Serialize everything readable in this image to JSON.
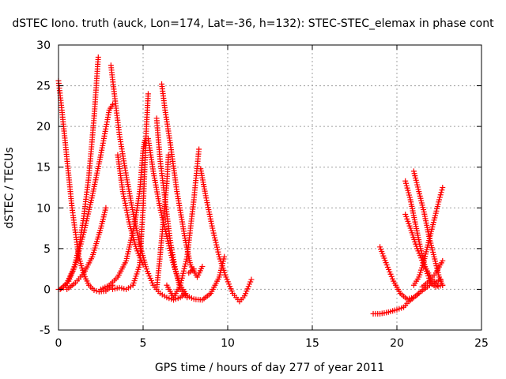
{
  "chart_data": {
    "type": "scatter",
    "title": "dSTEC Iono. truth (auck, Lon=174, Lat=-36, h=132): STEC-STEC_elemax in phase cont",
    "xlabel": "GPS time / hours of day 277 of year 2011",
    "ylabel": "dSTEC  / TECUs",
    "xlim": [
      0,
      25
    ],
    "ylim": [
      -5,
      30
    ],
    "x_ticks": [
      0,
      5,
      10,
      15,
      20,
      25
    ],
    "y_ticks": [
      -5,
      0,
      5,
      10,
      15,
      20,
      25,
      30
    ],
    "grid": true,
    "marker": "plus",
    "colors": {
      "series": "#ff0000",
      "grid": "#a0a0a0",
      "frame": "#000000"
    },
    "series": [
      {
        "points": [
          [
            0.0,
            25.6
          ],
          [
            0.2,
            22.0
          ],
          [
            0.4,
            18.0
          ],
          [
            0.6,
            14.0
          ],
          [
            0.8,
            10.0
          ],
          [
            1.0,
            7.0
          ],
          [
            1.2,
            4.0
          ],
          [
            1.5,
            1.8
          ],
          [
            1.8,
            0.5
          ],
          [
            2.1,
            -0.1
          ],
          [
            2.4,
            -0.3
          ],
          [
            2.8,
            -0.2
          ],
          [
            3.2,
            0.5
          ]
        ]
      },
      {
        "points": [
          [
            0.0,
            0.0
          ],
          [
            0.3,
            0.2
          ],
          [
            0.6,
            1.0
          ],
          [
            0.9,
            2.5
          ],
          [
            1.2,
            5.0
          ],
          [
            1.5,
            9.0
          ],
          [
            1.8,
            14.0
          ],
          [
            2.1,
            21.0
          ],
          [
            2.35,
            28.5
          ]
        ]
      },
      {
        "points": [
          [
            0.1,
            0.0
          ],
          [
            0.5,
            0.8
          ],
          [
            1.0,
            3.0
          ],
          [
            1.5,
            7.0
          ],
          [
            2.0,
            11.5
          ],
          [
            2.5,
            16.5
          ],
          [
            3.0,
            22.0
          ],
          [
            3.2,
            22.7
          ]
        ]
      },
      {
        "points": [
          [
            0.5,
            0.0
          ],
          [
            1.0,
            0.8
          ],
          [
            1.5,
            2.0
          ],
          [
            2.0,
            4.0
          ],
          [
            2.5,
            7.5
          ],
          [
            2.8,
            10.0
          ]
        ]
      },
      {
        "points": [
          [
            3.1,
            27.5
          ],
          [
            3.3,
            24.0
          ],
          [
            3.6,
            19.0
          ],
          [
            4.0,
            14.0
          ],
          [
            4.4,
            9.5
          ],
          [
            4.8,
            5.5
          ],
          [
            5.2,
            2.5
          ],
          [
            5.6,
            0.5
          ],
          [
            6.0,
            -0.5
          ],
          [
            6.4,
            -1.0
          ],
          [
            6.8,
            -1.3
          ],
          [
            7.2,
            -1.0
          ],
          [
            7.5,
            -0.5
          ]
        ]
      },
      {
        "points": [
          [
            3.5,
            16.5
          ],
          [
            3.8,
            12.0
          ],
          [
            4.2,
            8.0
          ],
          [
            4.6,
            5.0
          ],
          [
            5.0,
            3.0
          ]
        ]
      },
      {
        "points": [
          [
            2.5,
            0.0
          ],
          [
            3.0,
            0.5
          ],
          [
            3.5,
            1.5
          ],
          [
            4.0,
            3.5
          ],
          [
            4.5,
            8.0
          ],
          [
            4.8,
            12.0
          ],
          [
            5.0,
            17.0
          ],
          [
            5.1,
            18.3
          ]
        ]
      },
      {
        "points": [
          [
            3.2,
            0.0
          ],
          [
            3.6,
            0.2
          ],
          [
            4.0,
            0.0
          ],
          [
            4.4,
            0.5
          ],
          [
            4.8,
            3.0
          ],
          [
            5.0,
            10.0
          ],
          [
            5.1,
            15.0
          ],
          [
            5.2,
            20.0
          ],
          [
            5.3,
            24.0
          ]
        ]
      },
      {
        "points": [
          [
            5.3,
            18.5
          ],
          [
            5.6,
            14.5
          ],
          [
            6.0,
            10.0
          ],
          [
            6.4,
            6.5
          ],
          [
            6.8,
            3.0
          ],
          [
            7.2,
            0.5
          ],
          [
            7.6,
            -0.8
          ],
          [
            8.0,
            -1.2
          ],
          [
            8.5,
            -1.3
          ],
          [
            9.0,
            -0.5
          ],
          [
            9.5,
            1.5
          ],
          [
            9.8,
            4.0
          ]
        ]
      },
      {
        "points": [
          [
            6.1,
            25.2
          ],
          [
            6.3,
            22.0
          ],
          [
            6.6,
            18.0
          ],
          [
            7.0,
            12.0
          ],
          [
            7.5,
            6.0
          ],
          [
            7.8,
            3.0
          ],
          [
            8.2,
            1.5
          ],
          [
            8.5,
            2.8
          ]
        ]
      },
      {
        "points": [
          [
            5.8,
            21.0
          ],
          [
            6.0,
            16.0
          ],
          [
            6.3,
            11.0
          ],
          [
            6.6,
            6.0
          ],
          [
            6.9,
            2.5
          ],
          [
            7.2,
            0.0
          ],
          [
            7.6,
            -1.0
          ]
        ]
      },
      {
        "points": [
          [
            5.8,
            0.0
          ],
          [
            6.0,
            4.0
          ],
          [
            6.2,
            8.5
          ],
          [
            6.4,
            13.0
          ],
          [
            6.5,
            16.5
          ]
        ]
      },
      {
        "points": [
          [
            6.4,
            0.5
          ],
          [
            6.8,
            -1.0
          ],
          [
            7.2,
            0.5
          ],
          [
            7.6,
            4.0
          ],
          [
            8.0,
            11.0
          ],
          [
            8.3,
            17.2
          ]
        ]
      },
      {
        "points": [
          [
            8.4,
            14.8
          ],
          [
            8.7,
            11.5
          ],
          [
            9.1,
            7.5
          ],
          [
            9.5,
            4.0
          ],
          [
            9.9,
            1.5
          ],
          [
            10.3,
            -0.5
          ],
          [
            10.7,
            -1.5
          ],
          [
            11.0,
            -0.8
          ],
          [
            11.4,
            1.2
          ]
        ]
      },
      {
        "points": [
          [
            7.7,
            2.0
          ],
          [
            8.0,
            2.5
          ]
        ]
      },
      {
        "points": [
          [
            18.6,
            -3.0
          ],
          [
            19.0,
            -3.0
          ],
          [
            19.5,
            -2.8
          ],
          [
            20.0,
            -2.5
          ],
          [
            20.4,
            -2.2
          ],
          [
            20.7,
            -1.5
          ],
          [
            21.0,
            -1.0
          ],
          [
            21.4,
            -0.3
          ],
          [
            21.8,
            0.3
          ],
          [
            22.2,
            0.8
          ],
          [
            22.6,
            1.2
          ]
        ]
      },
      {
        "points": [
          [
            19.0,
            5.2
          ],
          [
            19.4,
            3.0
          ],
          [
            19.8,
            1.0
          ],
          [
            20.2,
            -0.5
          ],
          [
            20.6,
            -1.2
          ],
          [
            21.0,
            -1.0
          ],
          [
            21.3,
            -0.5
          ]
        ]
      },
      {
        "points": [
          [
            20.5,
            13.3
          ],
          [
            20.8,
            11.0
          ],
          [
            21.1,
            8.0
          ],
          [
            21.4,
            5.0
          ],
          [
            21.7,
            2.5
          ],
          [
            22.0,
            0.8
          ],
          [
            22.3,
            0.3
          ],
          [
            22.7,
            0.5
          ]
        ]
      },
      {
        "points": [
          [
            21.0,
            14.5
          ],
          [
            21.3,
            12.0
          ],
          [
            21.6,
            9.5
          ],
          [
            21.9,
            6.5
          ],
          [
            22.2,
            4.0
          ],
          [
            22.5,
            1.5
          ],
          [
            22.7,
            0.5
          ]
        ]
      },
      {
        "points": [
          [
            20.5,
            9.2
          ],
          [
            20.8,
            7.5
          ],
          [
            21.2,
            5.0
          ],
          [
            21.6,
            3.0
          ],
          [
            22.0,
            1.5
          ],
          [
            22.4,
            0.5
          ]
        ]
      },
      {
        "points": [
          [
            21.0,
            0.5
          ],
          [
            21.3,
            1.5
          ],
          [
            21.6,
            3.5
          ],
          [
            21.9,
            6.0
          ],
          [
            22.2,
            8.5
          ],
          [
            22.5,
            11.0
          ],
          [
            22.7,
            12.5
          ]
        ]
      },
      {
        "points": [
          [
            21.5,
            0.3
          ],
          [
            21.9,
            1.0
          ],
          [
            22.3,
            2.0
          ],
          [
            22.7,
            3.5
          ]
        ]
      }
    ]
  }
}
